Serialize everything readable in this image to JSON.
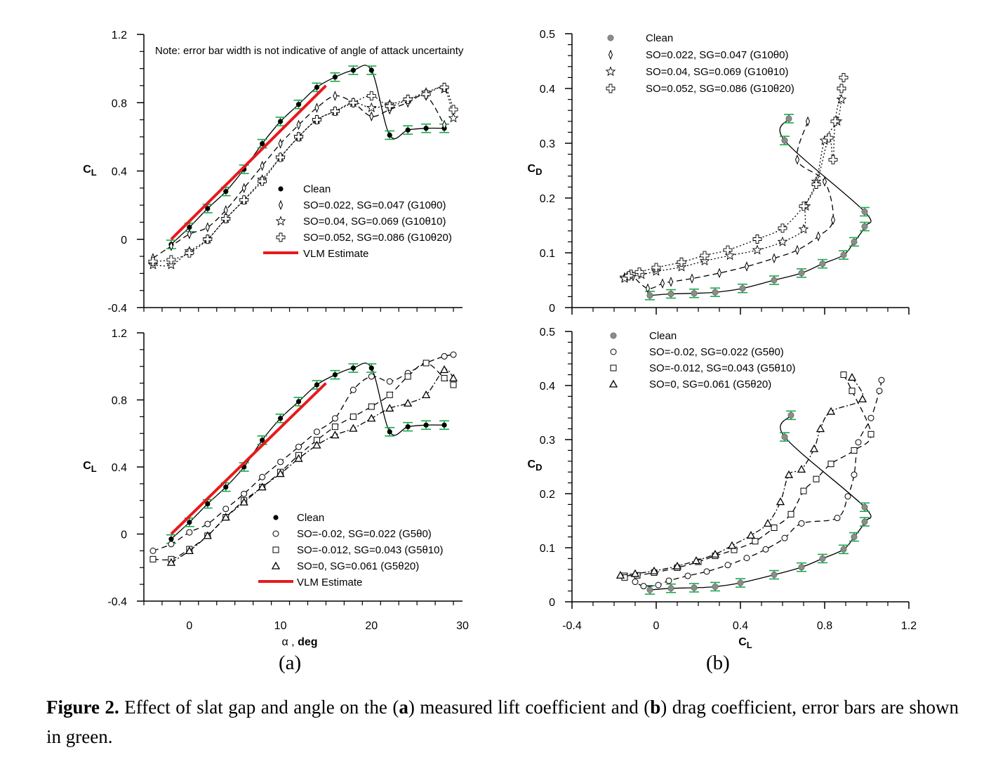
{
  "caption": {
    "label": "Figure 2.",
    "parts": [
      {
        "t": " Effect of slat gap and angle on the (",
        "b": false
      },
      {
        "t": "a",
        "b": true
      },
      {
        "t": ") measured lift coefficient and (",
        "b": false
      },
      {
        "t": "b",
        "b": true
      },
      {
        "t": ") drag coefficient, error bars are shown in green.",
        "b": false
      }
    ]
  },
  "panel_labels": {
    "a": "(a)",
    "b": "(b)"
  },
  "colors": {
    "error_bar": "#1aa84a",
    "vlm": "#e8191c",
    "clean_gray": "#8c8c8c",
    "axis": "#000000"
  },
  "chart_data": [
    {
      "type": "line",
      "ylabel": "CL",
      "xlabel": "",
      "xlim": [
        -5,
        30
      ],
      "ylim": [
        -0.4,
        1.2
      ],
      "yticks": [
        "1.2",
        "0.8",
        "0.4",
        "0",
        "-0.4"
      ],
      "xticks": [],
      "note": "Note: error bar width is not indicative of angle of attack uncertainty",
      "legend_position": "center-right",
      "series": [
        {
          "name": "Clean",
          "marker": "dot",
          "line": "solid",
          "errorbars": true,
          "x": [
            -2,
            0,
            2,
            4,
            6,
            8,
            10,
            12,
            14,
            16,
            18,
            20,
            22,
            24,
            26,
            28
          ],
          "y": [
            -0.03,
            0.07,
            0.18,
            0.28,
            0.41,
            0.56,
            0.69,
            0.79,
            0.89,
            0.95,
            0.99,
            0.99,
            0.61,
            0.64,
            0.65,
            0.65
          ]
        },
        {
          "name": "SO=0.022, SG=0.047 (G10θ0)",
          "marker": "diamond",
          "line": "dashed",
          "errorbars": false,
          "x": [
            -4,
            -2,
            0,
            2,
            4,
            6,
            8,
            10,
            12,
            14,
            16,
            18,
            20,
            22,
            24,
            26,
            28
          ],
          "y": [
            -0.11,
            -0.04,
            0.03,
            0.07,
            0.17,
            0.3,
            0.43,
            0.56,
            0.67,
            0.77,
            0.84,
            0.8,
            0.72,
            0.76,
            0.8,
            0.84,
            0.67
          ]
        },
        {
          "name": "SO=0.04, SG=0.069 (G10θ10)",
          "marker": "star",
          "line": "dotted",
          "errorbars": false,
          "x": [
            -4,
            -2,
            0,
            2,
            4,
            6,
            8,
            10,
            12,
            14,
            16,
            18,
            20,
            22,
            24,
            26,
            28,
            29
          ],
          "y": [
            -0.15,
            -0.15,
            -0.07,
            0.0,
            0.12,
            0.23,
            0.35,
            0.48,
            0.6,
            0.7,
            0.75,
            0.8,
            0.77,
            0.79,
            0.82,
            0.86,
            0.88,
            0.71
          ]
        },
        {
          "name": "SO=0.052, SG=0.086 (G10θ20)",
          "marker": "cross",
          "line": "dotted",
          "errorbars": false,
          "x": [
            -4,
            -2,
            0,
            2,
            4,
            6,
            8,
            10,
            12,
            14,
            16,
            18,
            20,
            22,
            24,
            26,
            28,
            29
          ],
          "y": [
            -0.13,
            -0.12,
            -0.08,
            0.0,
            0.12,
            0.23,
            0.34,
            0.48,
            0.6,
            0.7,
            0.75,
            0.8,
            0.84,
            0.78,
            0.82,
            0.85,
            0.89,
            0.76
          ]
        },
        {
          "name": "VLM Estimate",
          "marker": "none",
          "line": "red",
          "errorbars": false,
          "x": [
            -2,
            15
          ],
          "y": [
            0.0,
            0.9
          ]
        }
      ]
    },
    {
      "type": "line",
      "ylabel": "CL",
      "xlabel": "α , deg",
      "xlim": [
        -5,
        30
      ],
      "ylim": [
        -0.4,
        1.2
      ],
      "yticks": [
        "1.2",
        "0.8",
        "0.4",
        "0",
        "-0.4"
      ],
      "xticks": [
        "0",
        "10",
        "20",
        "30"
      ],
      "legend_position": "lower-right",
      "series": [
        {
          "name": "Clean",
          "marker": "dot",
          "line": "solid",
          "errorbars": true,
          "x": [
            -2,
            0,
            2,
            4,
            6,
            8,
            10,
            12,
            14,
            16,
            18,
            20,
            22,
            24,
            26,
            28
          ],
          "y": [
            -0.03,
            0.07,
            0.18,
            0.28,
            0.4,
            0.56,
            0.69,
            0.79,
            0.89,
            0.95,
            0.99,
            0.99,
            0.61,
            0.64,
            0.65,
            0.65
          ]
        },
        {
          "name": "SO=-0.02, SG=0.022 (G5θ0)",
          "marker": "circle",
          "line": "dashed",
          "errorbars": false,
          "x": [
            -4,
            -2,
            0,
            2,
            4,
            6,
            8,
            10,
            12,
            14,
            16,
            18,
            20,
            22,
            24,
            26,
            28,
            29
          ],
          "y": [
            -0.1,
            -0.06,
            0.01,
            0.06,
            0.15,
            0.24,
            0.34,
            0.43,
            0.52,
            0.61,
            0.69,
            0.86,
            0.94,
            0.91,
            0.96,
            1.02,
            1.06,
            1.07
          ]
        },
        {
          "name": "SO=-0.012, SG=0.043 (G5θ10)",
          "marker": "square",
          "line": "dashed",
          "errorbars": false,
          "x": [
            -4,
            -2,
            0,
            2,
            4,
            6,
            8,
            10,
            12,
            14,
            16,
            18,
            20,
            22,
            24,
            26,
            28,
            29
          ],
          "y": [
            -0.15,
            -0.15,
            -0.09,
            -0.01,
            0.1,
            0.2,
            0.28,
            0.37,
            0.47,
            0.56,
            0.64,
            0.7,
            0.76,
            0.83,
            0.94,
            1.02,
            0.93,
            0.89
          ]
        },
        {
          "name": "SO=0, SG=0.061 (G5θ20)",
          "marker": "triangle",
          "line": "dashdot",
          "errorbars": false,
          "x": [
            -2,
            0,
            2,
            4,
            6,
            8,
            10,
            12,
            14,
            16,
            18,
            20,
            22,
            24,
            26,
            28,
            29
          ],
          "y": [
            -0.17,
            -0.1,
            -0.01,
            0.1,
            0.19,
            0.28,
            0.36,
            0.45,
            0.53,
            0.59,
            0.63,
            0.69,
            0.75,
            0.78,
            0.83,
            0.98,
            0.93
          ]
        },
        {
          "name": "VLM Estimate",
          "marker": "none",
          "line": "red",
          "errorbars": false,
          "x": [
            -2,
            15
          ],
          "y": [
            0.0,
            0.9
          ]
        }
      ]
    },
    {
      "type": "line",
      "ylabel": "CD",
      "xlabel": "",
      "xlim": [
        -0.4,
        1.2
      ],
      "ylim": [
        0,
        0.5
      ],
      "yticks": [
        "0.5",
        "0.4",
        "0.3",
        "0.2",
        "0.1",
        "0"
      ],
      "xticks": [],
      "legend_position": "top-left",
      "series": [
        {
          "name": "Clean",
          "marker": "graydot",
          "line": "solid",
          "errorbars": true,
          "x": [
            0.63,
            0.61,
            0.99,
            0.99,
            0.94,
            0.89,
            0.79,
            0.69,
            0.56,
            0.41,
            0.28,
            0.18,
            0.07,
            -0.03
          ],
          "y": [
            0.345,
            0.305,
            0.175,
            0.148,
            0.12,
            0.096,
            0.08,
            0.063,
            0.05,
            0.035,
            0.028,
            0.026,
            0.025,
            0.022
          ]
        },
        {
          "name": "SO=0.022, SG=0.047 (G10θ0)",
          "marker": "diamond",
          "line": "dashed",
          "errorbars": false,
          "x": [
            0.72,
            0.67,
            0.8,
            0.84,
            0.77,
            0.67,
            0.56,
            0.43,
            0.3,
            0.17,
            0.07,
            0.03,
            -0.04,
            -0.11
          ],
          "y": [
            0.34,
            0.27,
            0.23,
            0.16,
            0.13,
            0.105,
            0.09,
            0.075,
            0.063,
            0.053,
            0.047,
            0.044,
            0.035,
            0.057
          ]
        },
        {
          "name": "SO=0.04, SG=0.069 (G10θ10)",
          "marker": "star",
          "line": "dotted",
          "errorbars": false,
          "x": [
            0.88,
            0.86,
            0.8,
            0.76,
            0.71,
            0.7,
            0.6,
            0.48,
            0.35,
            0.23,
            0.12,
            0.0,
            -0.07,
            -0.15,
            -0.15
          ],
          "y": [
            0.38,
            0.34,
            0.305,
            0.23,
            0.185,
            0.143,
            0.12,
            0.105,
            0.095,
            0.085,
            0.074,
            0.066,
            0.06,
            0.055,
            0.053
          ]
        },
        {
          "name": "SO=0.052, SG=0.086 (G10θ20)",
          "marker": "cross",
          "line": "dotted",
          "errorbars": false,
          "x": [
            0.89,
            0.88,
            0.85,
            0.84,
            0.82,
            0.76,
            0.7,
            0.6,
            0.48,
            0.34,
            0.23,
            0.12,
            0.0,
            -0.08,
            -0.12,
            -0.13
          ],
          "y": [
            0.42,
            0.4,
            0.34,
            0.27,
            0.31,
            0.225,
            0.185,
            0.145,
            0.125,
            0.105,
            0.095,
            0.083,
            0.073,
            0.065,
            0.061,
            0.058
          ]
        }
      ]
    },
    {
      "type": "line",
      "ylabel": "CD",
      "xlabel": "CL",
      "xlim": [
        -0.4,
        1.2
      ],
      "ylim": [
        0,
        0.5
      ],
      "yticks": [
        "0.5",
        "0.4",
        "0.3",
        "0.2",
        "0.1",
        "0"
      ],
      "xticks": [
        "-0.4",
        "0",
        "0.4",
        "0.8",
        "1.2"
      ],
      "legend_position": "top-left",
      "series": [
        {
          "name": "Clean",
          "marker": "graydot",
          "line": "solid",
          "errorbars": true,
          "x": [
            0.64,
            0.61,
            0.99,
            0.99,
            0.94,
            0.89,
            0.79,
            0.69,
            0.56,
            0.4,
            0.28,
            0.18,
            0.07,
            -0.03
          ],
          "y": [
            0.345,
            0.305,
            0.175,
            0.148,
            0.12,
            0.097,
            0.08,
            0.064,
            0.05,
            0.035,
            0.028,
            0.026,
            0.025,
            0.022
          ]
        },
        {
          "name": "SO=-0.02, SG=0.022 (G5θ0)",
          "marker": "circle",
          "line": "dashed",
          "errorbars": false,
          "x": [
            1.07,
            1.06,
            1.02,
            0.96,
            0.94,
            0.91,
            0.86,
            0.69,
            0.61,
            0.52,
            0.43,
            0.34,
            0.24,
            0.15,
            0.06,
            0.01,
            -0.06,
            -0.1
          ],
          "y": [
            0.41,
            0.39,
            0.34,
            0.295,
            0.235,
            0.195,
            0.155,
            0.145,
            0.118,
            0.097,
            0.081,
            0.068,
            0.056,
            0.048,
            0.039,
            0.031,
            0.029,
            0.037
          ]
        },
        {
          "name": "SO=-0.012, SG=0.043 (G5θ10)",
          "marker": "square",
          "line": "dashed",
          "errorbars": false,
          "x": [
            0.89,
            0.93,
            1.02,
            0.94,
            0.83,
            0.76,
            0.7,
            0.64,
            0.56,
            0.47,
            0.37,
            0.28,
            0.2,
            0.1,
            -0.01,
            -0.09,
            -0.15,
            -0.15
          ],
          "y": [
            0.42,
            0.39,
            0.31,
            0.28,
            0.255,
            0.227,
            0.205,
            0.162,
            0.137,
            0.112,
            0.096,
            0.085,
            0.074,
            0.063,
            0.054,
            0.049,
            0.048,
            0.045
          ]
        },
        {
          "name": "SO=0, SG=0.061 (G5θ20)",
          "marker": "triangle",
          "line": "dashdot",
          "errorbars": false,
          "x": [
            0.93,
            0.98,
            0.83,
            0.78,
            0.75,
            0.69,
            0.63,
            0.59,
            0.53,
            0.45,
            0.36,
            0.28,
            0.19,
            0.1,
            -0.01,
            -0.1,
            -0.17
          ],
          "y": [
            0.415,
            0.375,
            0.352,
            0.32,
            0.283,
            0.245,
            0.235,
            0.185,
            0.145,
            0.123,
            0.104,
            0.088,
            0.076,
            0.066,
            0.057,
            0.052,
            0.049
          ]
        }
      ]
    }
  ]
}
